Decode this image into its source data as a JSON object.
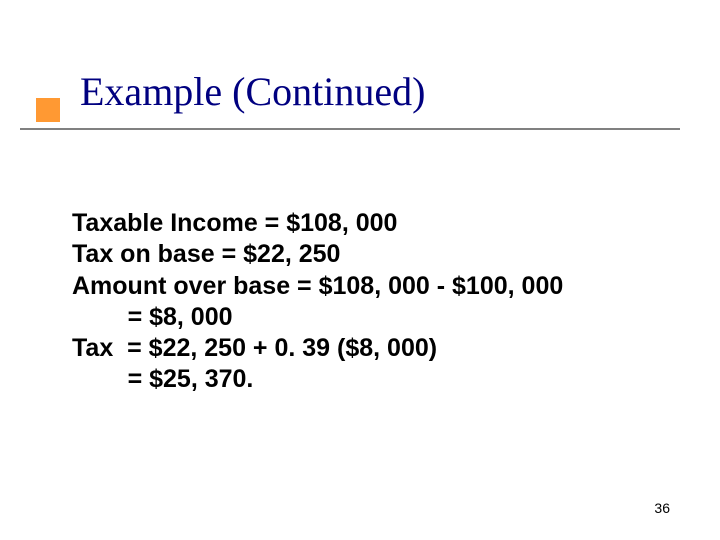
{
  "slide": {
    "title": "Example (Continued)",
    "title_color": "#000080",
    "title_fontsize": 40,
    "bullet_color": "#ff9933",
    "divider_color": "#808080",
    "background_color": "#ffffff",
    "content_color": "#000000",
    "content_fontsize": 25,
    "content_fontweight": "bold",
    "lines": [
      "Taxable Income = $108, 000",
      "Tax on base = $22, 250",
      "Amount over base = $108, 000 - $100, 000",
      "        = $8, 000",
      "Tax  = $22, 250 + 0. 39 ($8, 000)",
      "        = $25, 370."
    ],
    "page_number": "36"
  }
}
